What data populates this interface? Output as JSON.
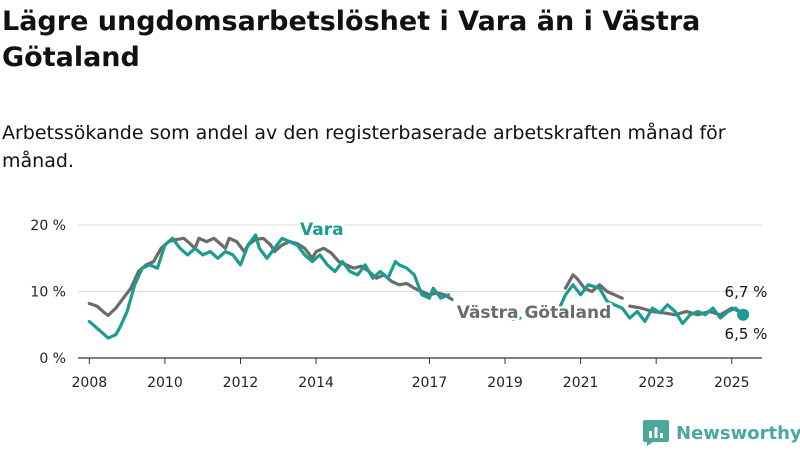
{
  "title": "Lägre ungdomsarbetslöshet i Vara än i Västra Götaland",
  "subtitle": "Arbetssökande som andel av den registerbaserade arbetskraften månad för månad.",
  "brand": {
    "name": "Newsworthy",
    "color": "#4aa89b",
    "icon": "bar-chart-icon"
  },
  "chart_data": {
    "type": "line",
    "x_unit": "year",
    "xlim": [
      2007.7,
      2025.8
    ],
    "ylim": [
      0,
      20
    ],
    "grid": true,
    "y_ticks": [
      {
        "value": 0,
        "label": "0 %"
      },
      {
        "value": 10,
        "label": "10 %"
      },
      {
        "value": 20,
        "label": "20 %"
      }
    ],
    "x_ticks": [
      {
        "value": 2008,
        "label": "2008"
      },
      {
        "value": 2010,
        "label": "2010"
      },
      {
        "value": 2012,
        "label": "2012"
      },
      {
        "value": 2014,
        "label": "2014"
      },
      {
        "value": 2017,
        "label": "2017"
      },
      {
        "value": 2019,
        "label": "2019"
      },
      {
        "value": 2021,
        "label": "2021"
      },
      {
        "value": 2023,
        "label": "2023"
      },
      {
        "value": 2025,
        "label": "2025"
      }
    ],
    "series": [
      {
        "name": "Västra Götaland",
        "color": "#6b6b6b",
        "label_value": "6,7 %",
        "segments": [
          [
            [
              2008.0,
              8.2
            ],
            [
              2008.2,
              7.8
            ],
            [
              2008.4,
              6.8
            ],
            [
              2008.5,
              6.4
            ],
            [
              2008.7,
              7.5
            ],
            [
              2008.9,
              9.0
            ],
            [
              2009.1,
              10.5
            ],
            [
              2009.3,
              13.0
            ],
            [
              2009.5,
              14.0
            ],
            [
              2009.7,
              14.5
            ],
            [
              2009.9,
              16.5
            ],
            [
              2010.1,
              17.5
            ],
            [
              2010.3,
              17.8
            ],
            [
              2010.5,
              18.0
            ],
            [
              2010.6,
              17.5
            ],
            [
              2010.8,
              16.5
            ],
            [
              2010.9,
              18.0
            ],
            [
              2011.1,
              17.5
            ],
            [
              2011.3,
              18.0
            ],
            [
              2011.5,
              17.0
            ],
            [
              2011.6,
              16.5
            ],
            [
              2011.7,
              18.0
            ],
            [
              2011.9,
              17.5
            ],
            [
              2012.1,
              16.0
            ],
            [
              2012.2,
              17.0
            ],
            [
              2012.4,
              17.8
            ],
            [
              2012.6,
              18.0
            ],
            [
              2012.8,
              17.0
            ],
            [
              2012.9,
              16.0
            ],
            [
              2013.1,
              17.0
            ],
            [
              2013.3,
              17.5
            ],
            [
              2013.5,
              17.2
            ],
            [
              2013.7,
              16.5
            ],
            [
              2013.9,
              15.0
            ],
            [
              2014.0,
              16.0
            ],
            [
              2014.2,
              16.5
            ],
            [
              2014.4,
              15.8
            ],
            [
              2014.6,
              14.5
            ],
            [
              2014.8,
              14.0
            ],
            [
              2015.0,
              13.5
            ],
            [
              2015.2,
              13.8
            ],
            [
              2015.4,
              13.0
            ],
            [
              2015.6,
              12.0
            ],
            [
              2015.8,
              12.5
            ],
            [
              2016.0,
              11.5
            ],
            [
              2016.2,
              11.0
            ],
            [
              2016.4,
              11.2
            ],
            [
              2016.6,
              10.5
            ],
            [
              2016.8,
              10.0
            ],
            [
              2017.0,
              9.5
            ],
            [
              2017.2,
              9.8
            ],
            [
              2017.4,
              9.5
            ],
            [
              2017.6,
              8.8
            ]
          ],
          [
            [
              2020.6,
              10.5
            ],
            [
              2020.8,
              12.5
            ],
            [
              2020.9,
              12.0
            ],
            [
              2021.1,
              10.5
            ],
            [
              2021.3,
              10.0
            ],
            [
              2021.5,
              11.0
            ],
            [
              2021.7,
              10.0
            ],
            [
              2021.9,
              9.5
            ],
            [
              2022.1,
              9.0
            ]
          ],
          [
            [
              2022.3,
              7.8
            ],
            [
              2022.6,
              7.5
            ],
            [
              2022.9,
              7.0
            ],
            [
              2023.2,
              6.8
            ],
            [
              2023.5,
              6.5
            ],
            [
              2023.8,
              7.0
            ],
            [
              2024.1,
              6.5
            ],
            [
              2024.4,
              7.0
            ],
            [
              2024.7,
              6.5
            ],
            [
              2025.0,
              7.5
            ],
            [
              2025.2,
              7.0
            ],
            [
              2025.35,
              6.7
            ]
          ]
        ]
      },
      {
        "name": "Vara",
        "color": "#1a9c8f",
        "label_value": "6,5 %",
        "segments": [
          [
            [
              2008.0,
              5.5
            ],
            [
              2008.2,
              4.5
            ],
            [
              2008.4,
              3.5
            ],
            [
              2008.5,
              3.0
            ],
            [
              2008.7,
              3.5
            ],
            [
              2008.8,
              4.5
            ],
            [
              2009.0,
              7.0
            ],
            [
              2009.2,
              11.0
            ],
            [
              2009.4,
              13.5
            ],
            [
              2009.6,
              14.0
            ],
            [
              2009.8,
              13.5
            ],
            [
              2010.0,
              17.0
            ],
            [
              2010.2,
              18.0
            ],
            [
              2010.4,
              16.5
            ],
            [
              2010.6,
              15.5
            ],
            [
              2010.8,
              16.5
            ],
            [
              2011.0,
              15.5
            ],
            [
              2011.2,
              16.0
            ],
            [
              2011.4,
              15.0
            ],
            [
              2011.6,
              16.0
            ],
            [
              2011.8,
              15.5
            ],
            [
              2012.0,
              14.0
            ],
            [
              2012.2,
              17.0
            ],
            [
              2012.4,
              18.5
            ],
            [
              2012.5,
              16.5
            ],
            [
              2012.7,
              15.0
            ],
            [
              2012.9,
              16.5
            ],
            [
              2013.1,
              18.0
            ],
            [
              2013.3,
              17.5
            ],
            [
              2013.5,
              17.0
            ],
            [
              2013.7,
              15.5
            ],
            [
              2013.9,
              14.5
            ],
            [
              2014.1,
              15.5
            ],
            [
              2014.3,
              14.0
            ],
            [
              2014.5,
              13.0
            ],
            [
              2014.7,
              14.5
            ],
            [
              2014.9,
              13.0
            ],
            [
              2015.1,
              12.5
            ],
            [
              2015.3,
              14.0
            ],
            [
              2015.5,
              12.0
            ],
            [
              2015.7,
              13.0
            ],
            [
              2015.9,
              12.0
            ],
            [
              2016.1,
              14.5
            ],
            [
              2016.2,
              14.0
            ],
            [
              2016.4,
              13.5
            ],
            [
              2016.6,
              12.5
            ],
            [
              2016.8,
              9.5
            ],
            [
              2017.0,
              9.0
            ],
            [
              2017.1,
              10.5
            ],
            [
              2017.3,
              9.0
            ],
            [
              2017.5,
              9.5
            ]
          ],
          [
            [
              2019.2,
              5.8
            ],
            [
              2019.4,
              6.0
            ]
          ],
          [
            [
              2020.4,
              7.0
            ],
            [
              2020.6,
              9.5
            ],
            [
              2020.8,
              11.0
            ],
            [
              2021.0,
              9.5
            ],
            [
              2021.2,
              11.0
            ],
            [
              2021.5,
              10.5
            ],
            [
              2021.7,
              8.5
            ],
            [
              2021.9,
              8.0
            ],
            [
              2022.1,
              7.5
            ],
            [
              2022.3,
              6.0
            ],
            [
              2022.5,
              7.0
            ],
            [
              2022.7,
              5.5
            ],
            [
              2022.9,
              7.5
            ],
            [
              2023.1,
              6.8
            ],
            [
              2023.3,
              8.0
            ],
            [
              2023.5,
              7.0
            ],
            [
              2023.7,
              5.2
            ],
            [
              2023.9,
              6.5
            ],
            [
              2024.1,
              7.0
            ],
            [
              2024.3,
              6.5
            ],
            [
              2024.5,
              7.5
            ],
            [
              2024.7,
              6.0
            ],
            [
              2024.9,
              7.0
            ],
            [
              2025.1,
              7.5
            ],
            [
              2025.3,
              6.5
            ]
          ]
        ]
      }
    ]
  }
}
